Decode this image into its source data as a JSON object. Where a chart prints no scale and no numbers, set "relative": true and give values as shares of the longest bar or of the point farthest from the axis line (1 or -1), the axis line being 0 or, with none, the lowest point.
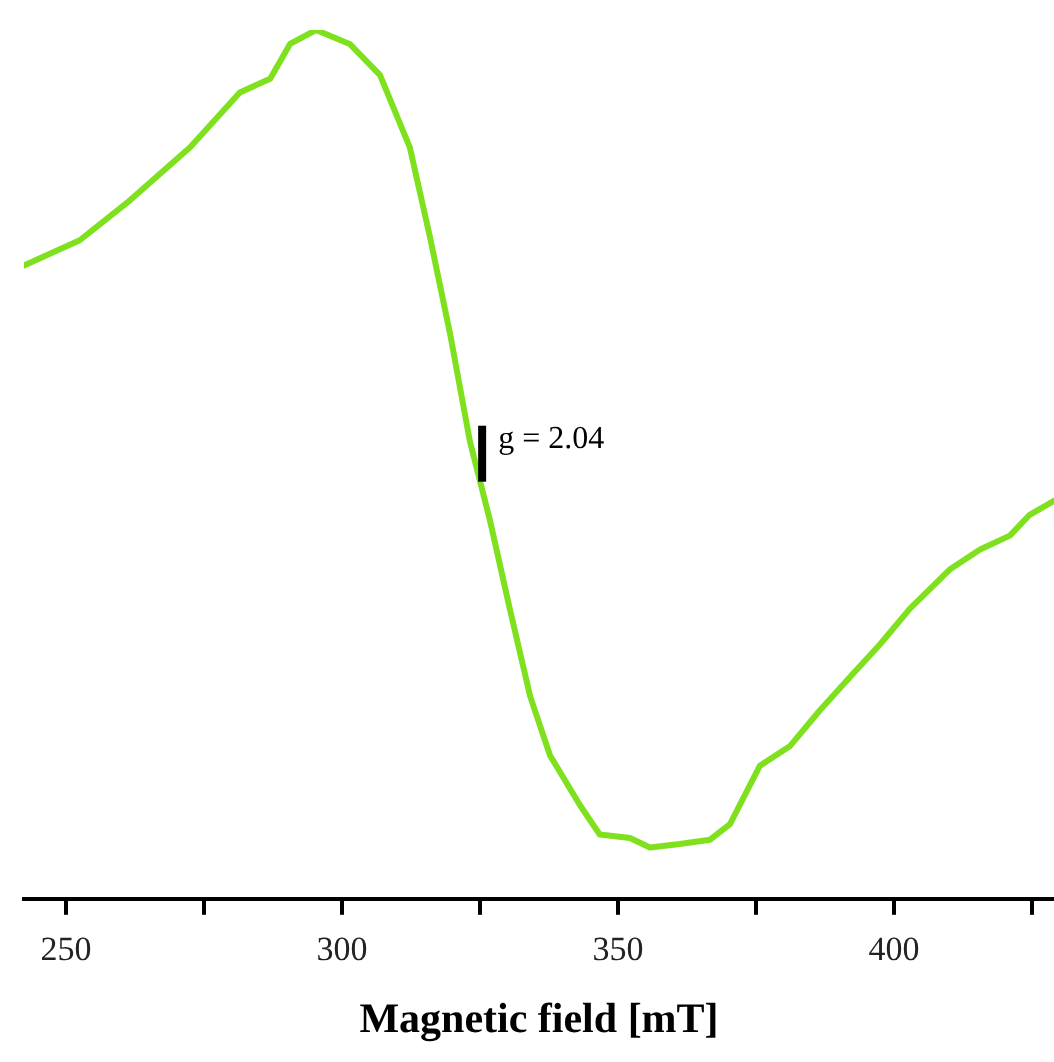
{
  "chart_data": {
    "type": "line",
    "relative": true,
    "xlabel": "Magnetic field [mT]",
    "xlim": [
      242.4,
      429
    ],
    "xticks": [
      250,
      {
        "value": 275,
        "label": null
      },
      300,
      {
        "value": 325,
        "label": null
      },
      350,
      {
        "value": 375,
        "label": null
      },
      400,
      {
        "value": 425,
        "label": null
      }
    ],
    "grid": false,
    "legend": false,
    "marker": "none",
    "line_style": "solid",
    "tick_labels": "x",
    "annotations": [
      {
        "text": "g = 2.04",
        "x": 325.4,
        "y": 0.51
      }
    ],
    "series": [
      {
        "color": "#7fe01e",
        "x": [
          242.4,
          252.5,
          261.6,
          272.5,
          281.5,
          287,
          290.6,
          295.3,
          301.4,
          306.9,
          312.3,
          315.9,
          319.6,
          323.2,
          326.8,
          330.4,
          334.1,
          337.7,
          343.1,
          346.7,
          352.2,
          355.8,
          361.2,
          366.7,
          370.3,
          375.7,
          381.2,
          386.6,
          392.0,
          397.5,
          402.9,
          410.1,
          415.6,
          421.0,
          424.6,
          429
        ],
        "values": [
          0.729,
          0.758,
          0.804,
          0.865,
          0.928,
          0.944,
          0.984,
          1.0,
          0.984,
          0.948,
          0.865,
          0.763,
          0.65,
          0.526,
          0.436,
          0.334,
          0.233,
          0.165,
          0.108,
          0.074,
          0.07,
          0.059,
          0.063,
          0.068,
          0.086,
          0.153,
          0.176,
          0.217,
          0.255,
          0.293,
          0.334,
          0.379,
          0.402,
          0.418,
          0.442,
          0.458
        ]
      }
    ]
  }
}
